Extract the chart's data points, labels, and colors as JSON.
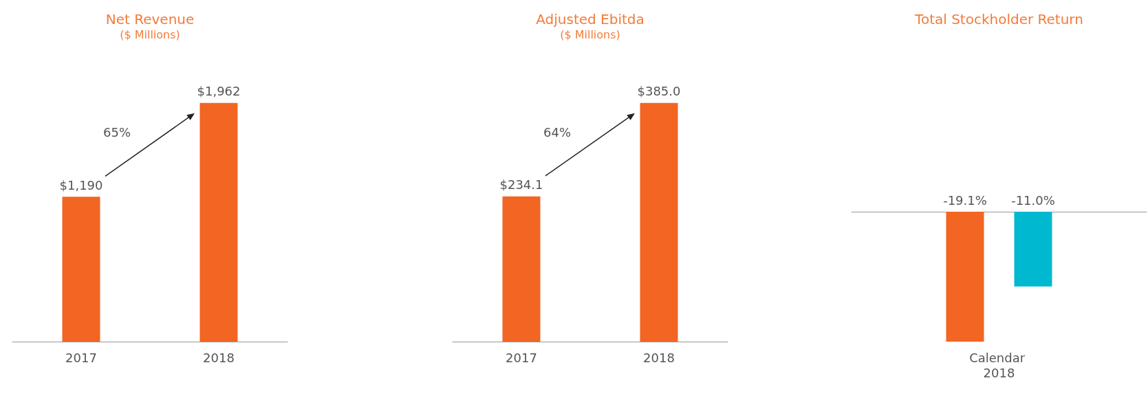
{
  "chart_data": [
    {
      "type": "bar",
      "title": "Net Revenue",
      "subtitle": "($ Millions)",
      "categories": [
        "2017",
        "2018"
      ],
      "values": [
        1190,
        1962
      ],
      "color": "#f26522",
      "value_labels": [
        "$1,190",
        "$1,962"
      ],
      "annotations": [
        "65%"
      ]
    },
    {
      "type": "bar",
      "title": "Adjusted Ebitda",
      "subtitle": "($ Millions)",
      "categories": [
        "2017",
        "2018"
      ],
      "values": [
        234.1,
        385.0
      ],
      "color": "#f26522",
      "value_labels": [
        "$234.1",
        "$385.0"
      ],
      "annotations": [
        "64%"
      ]
    },
    {
      "type": "bar",
      "title": "Total Stockholder Return",
      "categories": [
        "Calendar 2018"
      ],
      "series": [
        {
          "color": "#f26522",
          "values": [
            -19.1
          ],
          "value_labels": [
            "-19.1%"
          ]
        },
        {
          "color": "#00b8d0",
          "values": [
            -11.0
          ],
          "value_labels": [
            "-11.0%"
          ]
        }
      ]
    }
  ]
}
